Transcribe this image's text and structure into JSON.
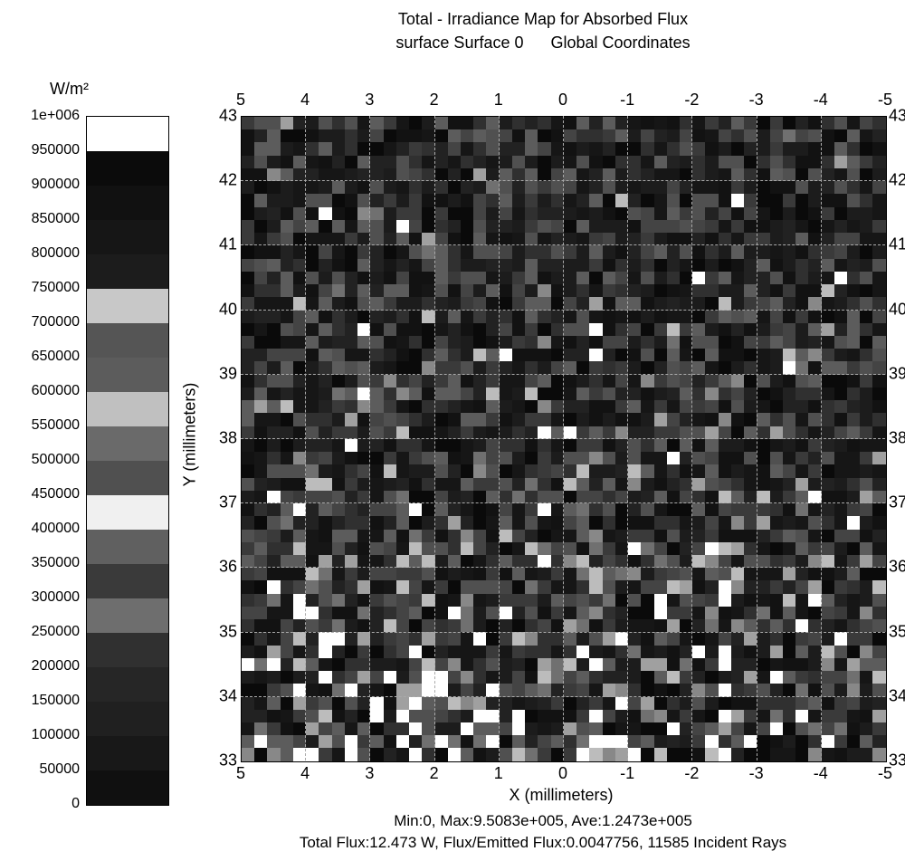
{
  "title": {
    "line1": "Total - Irradiance Map for Absorbed Flux",
    "line2_left": "surface Surface 0",
    "line2_right": "Global Coordinates"
  },
  "colorbar": {
    "units": "W/m²",
    "ticks": [
      "1e+006",
      "950000",
      "900000",
      "850000",
      "800000",
      "750000",
      "700000",
      "650000",
      "600000",
      "550000",
      "500000",
      "450000",
      "400000",
      "350000",
      "300000",
      "250000",
      "200000",
      "150000",
      "100000",
      "50000",
      "0"
    ],
    "colors": [
      "#ffffff",
      "#0b0b0b",
      "#111111",
      "#161616",
      "#1c1c1c",
      "#c8c8c8",
      "#555555",
      "#5c5c5c",
      "#c0c0c0",
      "#6a6a6a",
      "#505050",
      "#f0f0f0",
      "#606060",
      "#3a3a3a",
      "#6e6e6e",
      "#303030",
      "#262626",
      "#202020",
      "#181818",
      "#101010"
    ],
    "label_fontsize": 18,
    "tick_fontsize": 16
  },
  "heatmap": {
    "type": "heatmap",
    "n_cells": 50,
    "x_label": "X (millimeters)",
    "y_label": "Y (millimeters)",
    "x_ticks": [
      "5",
      "4",
      "3",
      "2",
      "1",
      "0",
      "-1",
      "-2",
      "-3",
      "-4",
      "-5"
    ],
    "y_ticks": [
      "43",
      "42",
      "41",
      "40",
      "39",
      "38",
      "37",
      "36",
      "35",
      "34",
      "33"
    ],
    "xlim": [
      5,
      -5
    ],
    "ylim": [
      43,
      33
    ],
    "background_color": "#ffffff",
    "grid_color": "#aaaaaa",
    "grid_style": "dashed",
    "tick_fontsize": 18,
    "label_fontsize": 18,
    "palette_dark": [
      "#0a0a0a",
      "#121212",
      "#161616",
      "#1c1c1c",
      "#222222"
    ],
    "palette_mid": [
      "#303030",
      "#3a3a3a",
      "#444444",
      "#505050",
      "#5c5c5c"
    ],
    "palette_lightgray": [
      "#707070",
      "#888888",
      "#a0a0a0",
      "#bcbcbc"
    ],
    "palette_white": "#ffffff",
    "row_band_white_prob": [
      0.005,
      0.005,
      0.005,
      0.005,
      0.005,
      0.007,
      0.007,
      0.007,
      0.007,
      0.007,
      0.008,
      0.008,
      0.008,
      0.008,
      0.01,
      0.01,
      0.01,
      0.01,
      0.012,
      0.012,
      0.013,
      0.013,
      0.014,
      0.014,
      0.016,
      0.016,
      0.018,
      0.02,
      0.022,
      0.024,
      0.028,
      0.03,
      0.032,
      0.035,
      0.04,
      0.045,
      0.05,
      0.055,
      0.06,
      0.065,
      0.07,
      0.075,
      0.08,
      0.085,
      0.09,
      0.095,
      0.1,
      0.105,
      0.11,
      0.12
    ],
    "row_band_lightgray_prob": [
      0.02,
      0.02,
      0.022,
      0.022,
      0.024,
      0.024,
      0.026,
      0.028,
      0.03,
      0.032,
      0.034,
      0.036,
      0.038,
      0.04,
      0.042,
      0.044,
      0.046,
      0.048,
      0.05,
      0.052,
      0.055,
      0.058,
      0.06,
      0.065,
      0.07,
      0.075,
      0.08,
      0.085,
      0.09,
      0.095,
      0.1,
      0.105,
      0.11,
      0.115,
      0.12,
      0.125,
      0.13,
      0.135,
      0.14,
      0.145,
      0.15,
      0.155,
      0.16,
      0.165,
      0.17,
      0.175,
      0.18,
      0.185,
      0.19,
      0.2
    ],
    "row_band_mid_prob": [
      0.35,
      0.35,
      0.35,
      0.36,
      0.36,
      0.36,
      0.37,
      0.37,
      0.37,
      0.38,
      0.38,
      0.38,
      0.38,
      0.39,
      0.39,
      0.39,
      0.39,
      0.4,
      0.4,
      0.4,
      0.4,
      0.4,
      0.4,
      0.4,
      0.4,
      0.4,
      0.4,
      0.4,
      0.4,
      0.4,
      0.38,
      0.38,
      0.38,
      0.37,
      0.36,
      0.36,
      0.35,
      0.35,
      0.34,
      0.34,
      0.33,
      0.33,
      0.32,
      0.32,
      0.31,
      0.31,
      0.3,
      0.3,
      0.3,
      0.28
    ],
    "random_seed": 424242
  },
  "footer": {
    "line1": "Min:0, Max:9.5083e+005, Ave:1.2473e+005",
    "line2": "Total Flux:12.473 W, Flux/Emitted Flux:0.0047756, 11585 Incident Rays"
  }
}
